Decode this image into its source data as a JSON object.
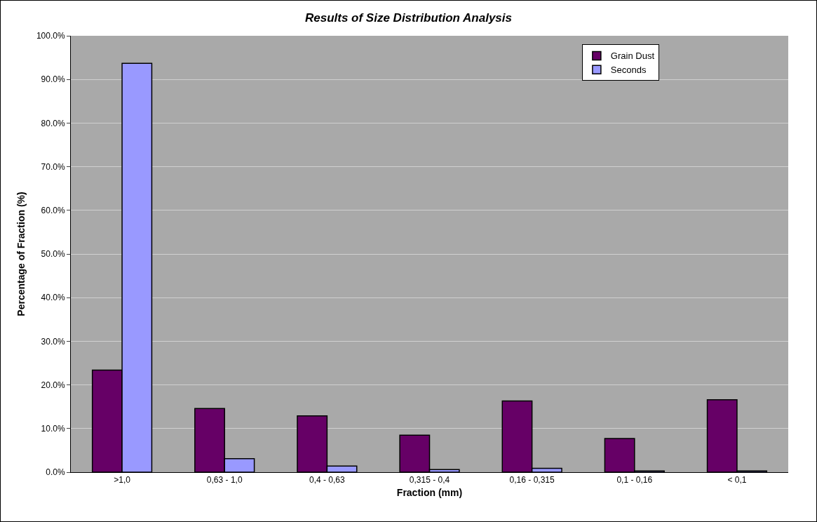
{
  "chart_data": {
    "type": "bar",
    "title": "Results of Size Distribution Analysis",
    "xlabel": "Fraction (mm)",
    "ylabel": "Percentage of Fraction (%)",
    "categories": [
      ">1,0",
      "0,63 - 1,0",
      "0,4 - 0,63",
      "0,315 - 0,4",
      "0,16 - 0,315",
      "0,1 - 0,16",
      "< 0,1"
    ],
    "series": [
      {
        "name": "Grain Dust",
        "color": "#660066",
        "values": [
          23.4,
          14.6,
          12.9,
          8.5,
          16.3,
          7.7,
          16.6
        ]
      },
      {
        "name": "Seconds",
        "color": "#9999ff",
        "values": [
          93.7,
          3.1,
          1.4,
          0.6,
          0.9,
          0.3,
          0.3
        ]
      }
    ],
    "ylim": [
      0,
      100
    ],
    "yticks": [
      {
        "value": 0,
        "label": "0.0%"
      },
      {
        "value": 10,
        "label": "10.0%"
      },
      {
        "value": 20,
        "label": "20.0%"
      },
      {
        "value": 30,
        "label": "30.0%"
      },
      {
        "value": 40,
        "label": "40.0%"
      },
      {
        "value": 50,
        "label": "50.0%"
      },
      {
        "value": 60,
        "label": "60.0%"
      },
      {
        "value": 70,
        "label": "70.0%"
      },
      {
        "value": 80,
        "label": "80.0%"
      },
      {
        "value": 90,
        "label": "90.0%"
      },
      {
        "value": 100,
        "label": "100.0%"
      }
    ],
    "grid": "y",
    "legend": "top right"
  }
}
